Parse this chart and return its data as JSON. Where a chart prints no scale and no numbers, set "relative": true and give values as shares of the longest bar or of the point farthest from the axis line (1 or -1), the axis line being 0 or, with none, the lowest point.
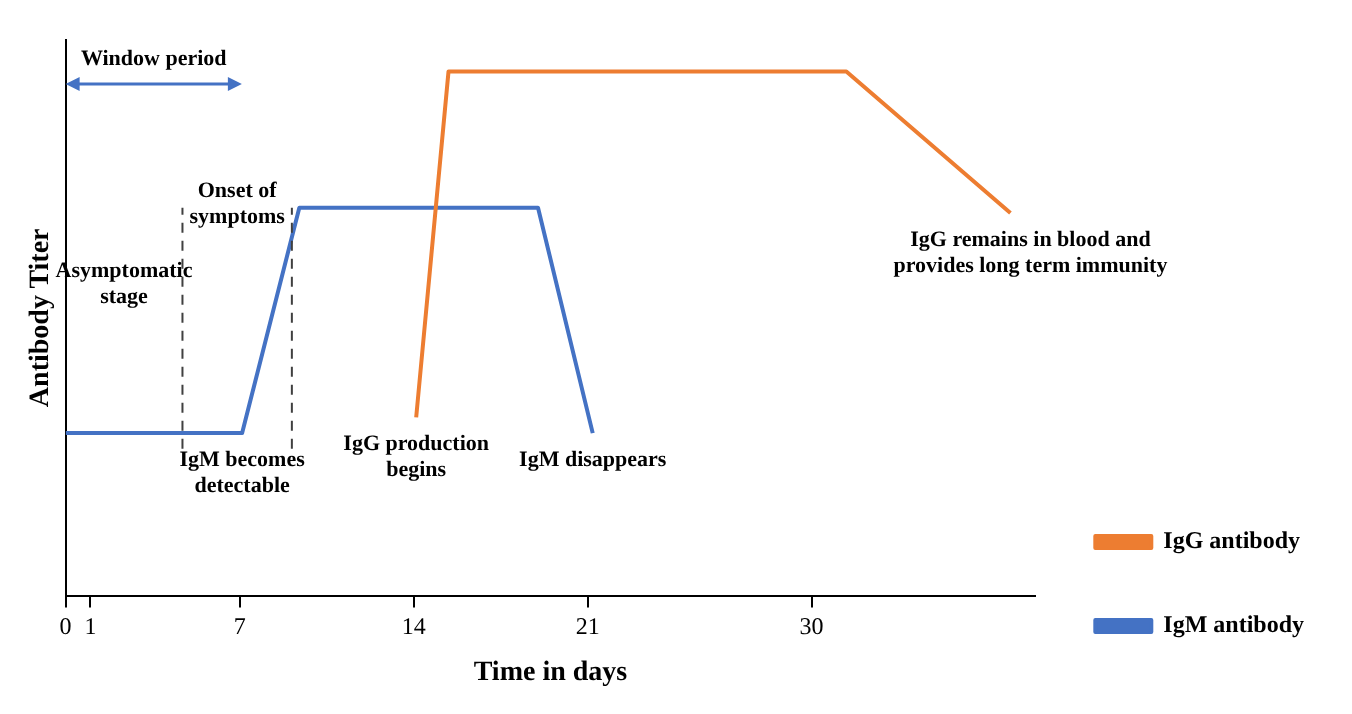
{
  "chart_data": {
    "type": "line",
    "relative": true,
    "xlabel": "Time in days",
    "ylabel": "Antibody Titer",
    "xlim": [
      0,
      39
    ],
    "xticks": [
      0,
      1,
      7,
      14,
      21,
      30
    ],
    "series": [
      {
        "name": "IgG antibody",
        "color": "#ed7d31",
        "x": [
          14.1,
          15.4,
          31.4,
          38
        ],
        "values": [
          0.34,
          1,
          1,
          0.73
        ]
      },
      {
        "name": "IgM antibody",
        "color": "#4472c4",
        "x": [
          0,
          7.1,
          9.4,
          19,
          21.2
        ],
        "values": [
          0.31,
          0.31,
          0.74,
          0.74,
          0.31
        ]
      }
    ],
    "marker": "none",
    "grid": false,
    "legend": "bottom right",
    "ref_lines": [
      {
        "axis": "x",
        "value": 4.7,
        "label": null,
        "line_style": "dashed",
        "color": "#404040"
      },
      {
        "axis": "x",
        "value": 9.1,
        "label": null,
        "line_style": "dashed",
        "color": "#404040"
      }
    ],
    "annotations": [
      "Window period",
      "Asymptomatic stage",
      "Onset of symptoms",
      {
        "text": "IgM becomes detectable",
        "x": 7.1,
        "y": 0.31
      },
      {
        "text": "IgG production begins",
        "x": 14.1,
        "y": 0.34
      },
      {
        "text": "IgM disappears",
        "x": 21.2,
        "y": 0.31
      },
      {
        "text": "IgG remains in blood and provides long term immunity",
        "x": 38,
        "y": 0.73
      }
    ]
  }
}
